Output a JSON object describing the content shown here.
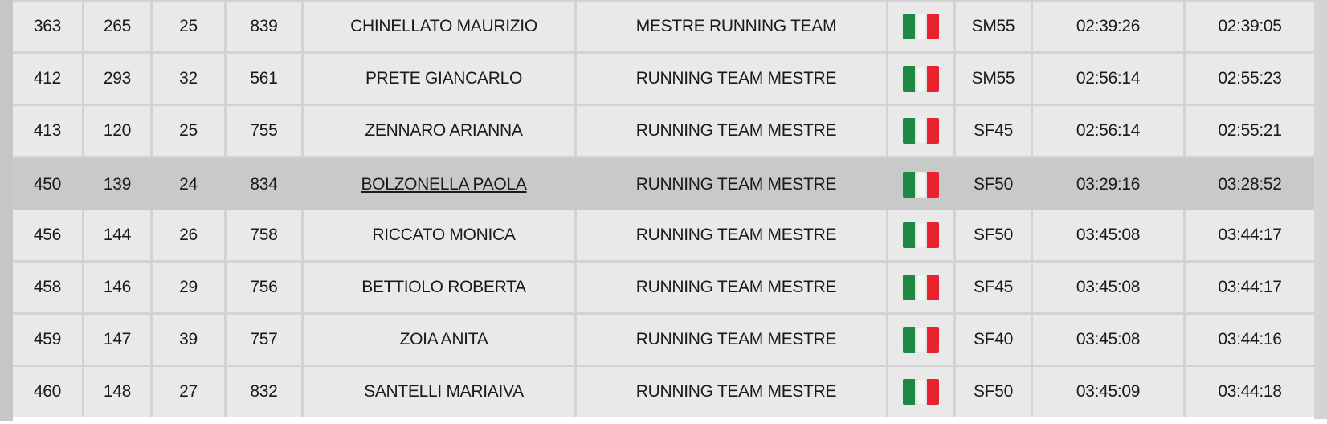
{
  "colors": {
    "cell_bg": "#e8e9e8",
    "grid_border": "#d2d3d2",
    "highlight_row": "#c8cac9",
    "text": "#1a1a1a",
    "flag_green": "#1d8a44",
    "flag_white": "#f4f4f2",
    "flag_red": "#e8232e"
  },
  "table": {
    "columns": [
      "position",
      "gender_position",
      "category_position",
      "bib",
      "name",
      "team",
      "nationality",
      "category",
      "time_1",
      "time_2"
    ],
    "rows": [
      {
        "pos": "363",
        "gpos": "265",
        "cpos": "25",
        "bib": "839",
        "name": "CHINELLATO MAURIZIO",
        "team": "MESTRE RUNNING TEAM",
        "flag": "Italy",
        "cat": "SM55",
        "t1": "02:39:26",
        "t2": "02:39:05",
        "highlighted": false
      },
      {
        "pos": "412",
        "gpos": "293",
        "cpos": "32",
        "bib": "561",
        "name": "PRETE GIANCARLO",
        "team": "RUNNING TEAM MESTRE",
        "flag": "Italy",
        "cat": "SM55",
        "t1": "02:56:14",
        "t2": "02:55:23",
        "highlighted": false
      },
      {
        "pos": "413",
        "gpos": "120",
        "cpos": "25",
        "bib": "755",
        "name": "ZENNARO ARIANNA",
        "team": "RUNNING TEAM MESTRE",
        "flag": "Italy",
        "cat": "SF45",
        "t1": "02:56:14",
        "t2": "02:55:21",
        "highlighted": false
      },
      {
        "pos": "450",
        "gpos": "139",
        "cpos": "24",
        "bib": "834",
        "name": "BOLZONELLA PAOLA",
        "team": "RUNNING TEAM MESTRE",
        "flag": "Italy",
        "cat": "SF50",
        "t1": "03:29:16",
        "t2": "03:28:52",
        "highlighted": true
      },
      {
        "pos": "456",
        "gpos": "144",
        "cpos": "26",
        "bib": "758",
        "name": "RICCATO MONICA",
        "team": "RUNNING TEAM MESTRE",
        "flag": "Italy",
        "cat": "SF50",
        "t1": "03:45:08",
        "t2": "03:44:17",
        "highlighted": false
      },
      {
        "pos": "458",
        "gpos": "146",
        "cpos": "29",
        "bib": "756",
        "name": "BETTIOLO ROBERTA",
        "team": "RUNNING TEAM MESTRE",
        "flag": "Italy",
        "cat": "SF45",
        "t1": "03:45:08",
        "t2": "03:44:17",
        "highlighted": false
      },
      {
        "pos": "459",
        "gpos": "147",
        "cpos": "39",
        "bib": "757",
        "name": "ZOIA ANITA",
        "team": "RUNNING TEAM MESTRE",
        "flag": "Italy",
        "cat": "SF40",
        "t1": "03:45:08",
        "t2": "03:44:16",
        "highlighted": false
      },
      {
        "pos": "460",
        "gpos": "148",
        "cpos": "27",
        "bib": "832",
        "name": "SANTELLI MARIAIVA",
        "team": "RUNNING TEAM MESTRE",
        "flag": "Italy",
        "cat": "SF50",
        "t1": "03:45:09",
        "t2": "03:44:18",
        "highlighted": false
      }
    ]
  }
}
